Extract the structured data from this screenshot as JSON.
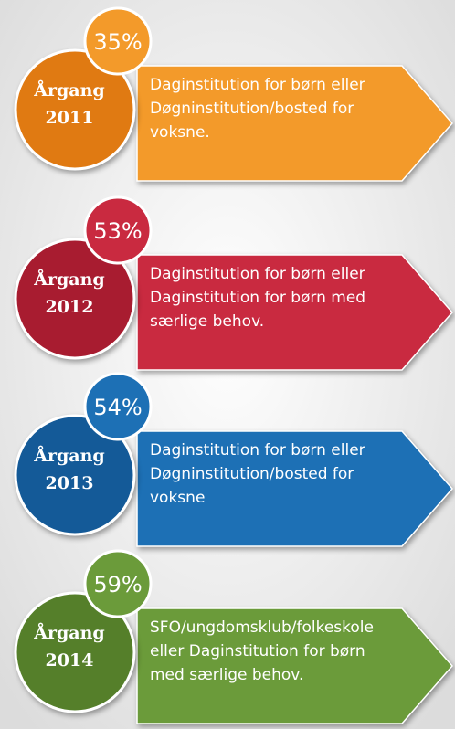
{
  "items": [
    {
      "percent": "35%",
      "label": "Årgang",
      "year": "2011",
      "lines": [
        "Daginstitution for børn eller",
        "Døgninstitution/bosted for",
        "voksne."
      ],
      "color": "#f39a2a",
      "dark": "#e07a12"
    },
    {
      "percent": "53%",
      "label": "Årgang",
      "year": "2012",
      "lines": [
        "Daginstitution for børn eller",
        "Daginstitution for børn med",
        "særlige behov."
      ],
      "color": "#c92a40",
      "dark": "#a81c30"
    },
    {
      "percent": "54%",
      "label": "Årgang",
      "year": "2013",
      "lines": [
        "Daginstitution for børn eller",
        "Døgninstitution/bosted for",
        "voksne"
      ],
      "color": "#1d70b5",
      "dark": "#145a98"
    },
    {
      "percent": "59%",
      "label": "Årgang",
      "year": "2014",
      "lines": [
        "SFO/ungdomsklub/folkeskole",
        "eller Daginstitution for børn",
        "med særlige behov."
      ],
      "color": "#6b9b3a",
      "dark": "#557f2a"
    }
  ]
}
